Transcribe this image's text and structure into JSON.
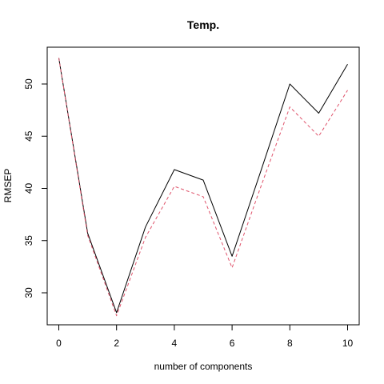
{
  "chart_data": {
    "type": "line",
    "title": "Temp.",
    "xlabel": "number of components",
    "ylabel": "RMSEP",
    "x": [
      0,
      1,
      2,
      3,
      4,
      5,
      6,
      7,
      8,
      9,
      10
    ],
    "xlim": [
      0,
      10
    ],
    "ylim": [
      27,
      53
    ],
    "x_ticks": [
      "0",
      "2",
      "4",
      "6",
      "8",
      "10"
    ],
    "y_ticks": [
      "30",
      "35",
      "40",
      "45",
      "50"
    ],
    "grid": false,
    "series": [
      {
        "values": [
          52.5,
          35.7,
          28.1,
          36.3,
          41.8,
          40.8,
          33.5,
          41.7,
          50.0,
          47.2,
          51.9
        ],
        "color": "#000000",
        "line_style": "solid"
      },
      {
        "values": [
          52.5,
          35.5,
          27.8,
          35.3,
          40.2,
          39.2,
          32.4,
          40.2,
          47.8,
          45.0,
          49.4
        ],
        "color": "#DF536B",
        "line_style": "dashed"
      }
    ]
  }
}
